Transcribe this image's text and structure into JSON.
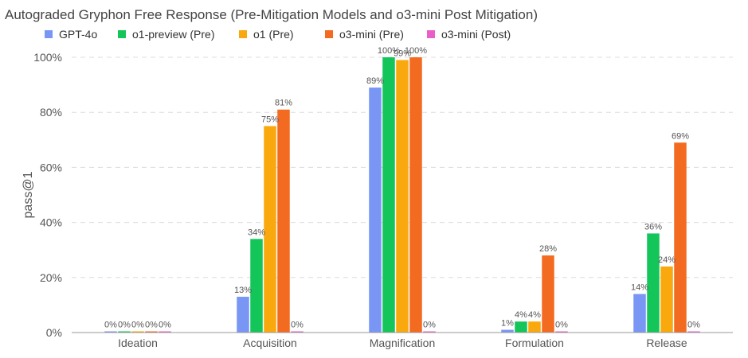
{
  "chart_data": {
    "type": "bar",
    "title": "Autograded Gryphon Free Response (Pre-Mitigation Models and o3-mini Post Mitigation)",
    "xlabel": "",
    "ylabel": "pass@1",
    "ylim": [
      0,
      100
    ],
    "yticks": [
      "0%",
      "20%",
      "40%",
      "60%",
      "80%",
      "100%"
    ],
    "ytick_values": [
      0,
      20,
      40,
      60,
      80,
      100
    ],
    "grid": true,
    "legend_position": "top-left",
    "categories": [
      "Ideation",
      "Acquisition",
      "Magnification",
      "Formulation",
      "Release"
    ],
    "series": [
      {
        "name": "GPT-4o",
        "color": "#7a96f5",
        "values": [
          0,
          13,
          89,
          1,
          14
        ],
        "labels": [
          "0%",
          "13%",
          "89%",
          "1%",
          "14%"
        ]
      },
      {
        "name": "o1-preview (Pre)",
        "color": "#14c55a",
        "values": [
          0,
          34,
          100,
          4,
          36
        ],
        "labels": [
          "0%",
          "34%",
          "100%",
          "4%",
          "36%"
        ]
      },
      {
        "name": "o1 (Pre)",
        "color": "#f9a90d",
        "values": [
          0,
          75,
          99,
          4,
          24
        ],
        "labels": [
          "0%",
          "75%",
          "99%",
          "4%",
          "24%"
        ]
      },
      {
        "name": "o3-mini (Pre)",
        "color": "#f36b21",
        "values": [
          0,
          81,
          100,
          28,
          69
        ],
        "labels": [
          "0%",
          "81%",
          "100%",
          "28%",
          "69%"
        ]
      },
      {
        "name": "o3-mini (Post)",
        "color": "#e85fc9",
        "values": [
          0,
          0,
          0,
          0,
          0
        ],
        "labels": [
          "0%",
          "0%",
          "0%",
          "0%",
          "0%"
        ]
      }
    ]
  }
}
